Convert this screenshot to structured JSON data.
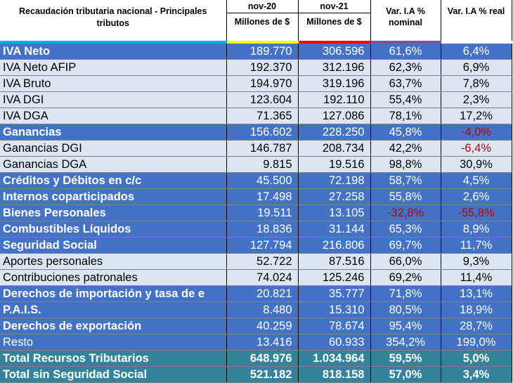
{
  "header": {
    "title": "Recaudación tributaria nacional - Principales tributos",
    "col1_period": "nov-20",
    "col1_unit": "Millones de $",
    "col2_period": "nov-21",
    "col2_unit": "Millones de $",
    "col3": "Var. I.A % nominal",
    "col4": "Var. I.A % real"
  },
  "rows": [
    {
      "label": "IVA Neto",
      "v2020": "189.770",
      "v2021": "306.596",
      "nominal": "61,6%",
      "real": "6,4%",
      "style": "major"
    },
    {
      "label": "IVA Neto AFIP",
      "v2020": "192.370",
      "v2021": "312.196",
      "nominal": "62,3%",
      "real": "6,9%",
      "style": "minor"
    },
    {
      "label": "IVA Bruto",
      "v2020": "194.970",
      "v2021": "319.196",
      "nominal": "63,7%",
      "real": "7,8%",
      "style": "minor"
    },
    {
      "label": "IVA DGI",
      "v2020": "123.604",
      "v2021": "192.110",
      "nominal": "55,4%",
      "real": "2,3%",
      "style": "minor"
    },
    {
      "label": "IVA DGA",
      "v2020": "71.365",
      "v2021": "127.086",
      "nominal": "78,1%",
      "real": "17,2%",
      "style": "minor"
    },
    {
      "label": "Ganancias",
      "v2020": "156.602",
      "v2021": "228.250",
      "nominal": "45,8%",
      "real": "-4,0%",
      "style": "major"
    },
    {
      "label": "Ganancias DGI",
      "v2020": "146.787",
      "v2021": "208.734",
      "nominal": "42,2%",
      "real": "-6,4%",
      "style": "minor"
    },
    {
      "label": "Ganancias DGA",
      "v2020": "9.815",
      "v2021": "19.516",
      "nominal": "98,8%",
      "real": "30,9%",
      "style": "minor"
    },
    {
      "label": "Créditos y Débitos en c/c",
      "v2020": "45.500",
      "v2021": "72.198",
      "nominal": "58,7%",
      "real": "4,5%",
      "style": "major"
    },
    {
      "label": "Internos coparticipados",
      "v2020": "17.498",
      "v2021": "27.258",
      "nominal": "55,8%",
      "real": "2,6%",
      "style": "major"
    },
    {
      "label": "Bienes Personales",
      "v2020": "19.511",
      "v2021": "13.105",
      "nominal": "-32,8%",
      "real": "-55,8%",
      "style": "major"
    },
    {
      "label": "Combustibles Líquidos",
      "v2020": "18.836",
      "v2021": "31.144",
      "nominal": "65,3%",
      "real": "8,9%",
      "style": "major"
    },
    {
      "label": "Seguridad Social",
      "v2020": "127.794",
      "v2021": "216.806",
      "nominal": "69,7%",
      "real": "11,7%",
      "style": "major"
    },
    {
      "label": "Aportes personales",
      "v2020": "52.722",
      "v2021": "87.516",
      "nominal": "66,0%",
      "real": "9,3%",
      "style": "minor"
    },
    {
      "label": "Contribuciones patronales",
      "v2020": "74.024",
      "v2021": "125.246",
      "nominal": "69,2%",
      "real": "11,4%",
      "style": "minor"
    },
    {
      "label": "Derechos de importación y tasa de e",
      "v2020": "20.821",
      "v2021": "35.777",
      "nominal": "71,8%",
      "real": "13,1%",
      "style": "major"
    },
    {
      "label": "P.A.I.S.",
      "v2020": "8.480",
      "v2021": "15.310",
      "nominal": "80,5%",
      "real": "18,9%",
      "style": "major"
    },
    {
      "label": "Derechos de exportación",
      "v2020": "40.259",
      "v2021": "78.674",
      "nominal": "95,4%",
      "real": "28,7%",
      "style": "major"
    },
    {
      "label": "Resto",
      "v2020": "13.416",
      "v2021": "60.933",
      "nominal": "354,2%",
      "real": "199,0%",
      "style": "major-plain"
    },
    {
      "label": "Total Recursos Tributarios",
      "v2020": "648.976",
      "v2021": "1.034.964",
      "nominal": "59,5%",
      "real": "5,0%",
      "style": "total"
    },
    {
      "label": "Total sin Seguridad Social",
      "v2020": "521.182",
      "v2021": "818.158",
      "nominal": "57,0%",
      "real": "3,4%",
      "style": "total"
    }
  ],
  "colors": {
    "major_row": "#4472c4",
    "minor_row": "#dce6f2",
    "total_row": "#31849b",
    "negative_text": "#c00000"
  }
}
